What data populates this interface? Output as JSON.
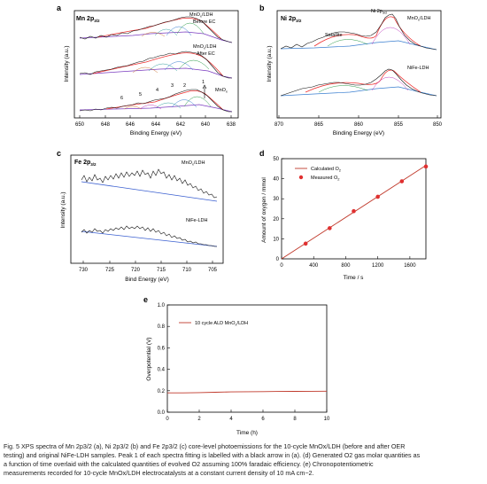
{
  "caption": {
    "lines": [
      "Fig. 5   XPS spectra of Mn 2p3/2 (a), Ni 2p3/2 (b) and Fe 2p3/2 (c) core-level photoemissions for the 10-cycle MnOx/LDH (before and after OER",
      "testing) and original NiFe-LDH samples. Peak 1 of each spectra fitting is labelled with a black arrow in (a). (d) Generated O2 gas molar quantities as",
      "a function of time overlaid with the calculated quantities of evolved O2 assuming 100% faradaic efficiency. (e) Chronopotentiometric",
      "measurements recorded for 10-cycle MnOx/LDH electrocatalysts at a constant current density of 10 mA cm−2."
    ]
  },
  "panels": {
    "a": {
      "letter": "a",
      "element": "Mn 2p3/2",
      "xlabel": "Binding Energy (eV)",
      "ylabel": "Intensity (a.u.)",
      "ticks": [
        "650",
        "648",
        "646",
        "644",
        "642",
        "640",
        "638"
      ],
      "spectra": [
        {
          "label1": "MnOx/LDH",
          "label2": "Before EC"
        },
        {
          "label1": "MnOx/LDH",
          "label2": "After EC"
        },
        {
          "label1": "MnOx",
          "label2": ""
        }
      ],
      "peak_numbers": [
        "6",
        "5",
        "4",
        "3",
        "2",
        "1"
      ]
    },
    "b": {
      "letter": "b",
      "element": "Ni 2p3/2",
      "xlabel": "Binding Energy (eV)",
      "ylabel": "Intensity (a.u.)",
      "ticks": [
        "870",
        "865",
        "860",
        "855",
        "850"
      ],
      "labels": [
        "Satallite",
        "Ni 2p3/2",
        "MnOx/LDH",
        "NiFe-LDH"
      ]
    },
    "c": {
      "letter": "c",
      "element": "Fe 2p3/2",
      "xlabel": "Bind Energy (eV)",
      "ylabel": "Intensity (a.u.)",
      "ticks": [
        "730",
        "725",
        "720",
        "715",
        "710",
        "705"
      ],
      "labels": [
        "MnOx/LDH",
        "NiFe-LDH"
      ]
    },
    "d": {
      "letter": "d",
      "xlabel": "Time / s",
      "ylabel": "Amount of oxygen / mmol",
      "legend": [
        "Calculated O2",
        "Measured O2"
      ]
    },
    "e": {
      "letter": "e",
      "xlabel": "Time (h)",
      "ylabel": "Overpotential (V)",
      "legend": [
        "10 cycle ALD MnOx/LDH"
      ]
    }
  },
  "chart_data": [
    {
      "type": "line",
      "panel": "d",
      "xlim": [
        0,
        1800
      ],
      "ylim": [
        0,
        50
      ],
      "xticks": [
        0,
        400,
        800,
        1200,
        1600
      ],
      "yticks": [
        0,
        10,
        20,
        30,
        40,
        50
      ],
      "series": [
        {
          "name": "Calculated O2",
          "x": [
            0,
            1800
          ],
          "y": [
            0,
            46.6
          ]
        },
        {
          "name": "Measured O2",
          "x": [
            300,
            600,
            900,
            1200,
            1500,
            1800
          ],
          "y": [
            7.6,
            15.3,
            23.8,
            31.0,
            38.7,
            46.1
          ]
        }
      ],
      "colors": {
        "line": "#c0392b",
        "marker": "#e03030"
      }
    },
    {
      "type": "line",
      "panel": "e",
      "xlim": [
        0,
        10
      ],
      "ylim": [
        0,
        1.0
      ],
      "xticks": [
        0,
        2,
        4,
        6,
        8,
        10
      ],
      "yticks": [
        0.0,
        0.2,
        0.4,
        0.6,
        0.8,
        1.0
      ],
      "series": [
        {
          "name": "10 cycle ALD MnOx/LDH",
          "x": [
            0,
            0.5,
            1,
            2,
            3,
            4,
            5,
            6,
            7,
            8,
            9,
            10
          ],
          "y": [
            0.18,
            0.18,
            0.18,
            0.183,
            0.186,
            0.189,
            0.191,
            0.192,
            0.193,
            0.194,
            0.195,
            0.196
          ]
        }
      ],
      "colors": {
        "line": "#c0392b"
      }
    }
  ]
}
